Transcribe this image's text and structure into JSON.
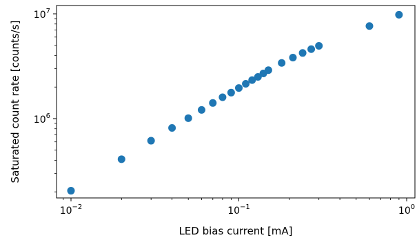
{
  "chart_data": {
    "type": "scatter",
    "xlabel": "LED bias current [mA]",
    "ylabel": "Saturated count rate [counts/s]",
    "x_scale": "log",
    "y_scale": "log",
    "xlim": [
      0.0082,
      1.12
    ],
    "ylim": [
      175000,
      12000000
    ],
    "grid": false,
    "marker_color": "#1f77b4",
    "x_ticks": [
      {
        "value": 0.01,
        "base": "10",
        "exp": "−2"
      },
      {
        "value": 0.1,
        "base": "10",
        "exp": "−1"
      },
      {
        "value": 1,
        "base": "10",
        "exp": "0"
      }
    ],
    "y_ticks": [
      {
        "value": 1000000,
        "base": "10",
        "exp": "6"
      },
      {
        "value": 10000000,
        "base": "10",
        "exp": "7"
      }
    ],
    "series": [
      {
        "x": [
          0.01,
          0.02,
          0.03,
          0.04,
          0.05,
          0.06,
          0.07,
          0.08,
          0.09,
          0.1,
          0.11,
          0.12,
          0.13,
          0.14,
          0.15,
          0.18,
          0.21,
          0.24,
          0.27,
          0.3,
          0.6,
          0.9
        ],
        "y": [
          205000,
          410000,
          615000,
          815000,
          1010000,
          1210000,
          1410000,
          1600000,
          1770000,
          1960000,
          2150000,
          2330000,
          2500000,
          2700000,
          2900000,
          3400000,
          3820000,
          4230000,
          4600000,
          4950000,
          7650000,
          9800000
        ]
      }
    ]
  }
}
